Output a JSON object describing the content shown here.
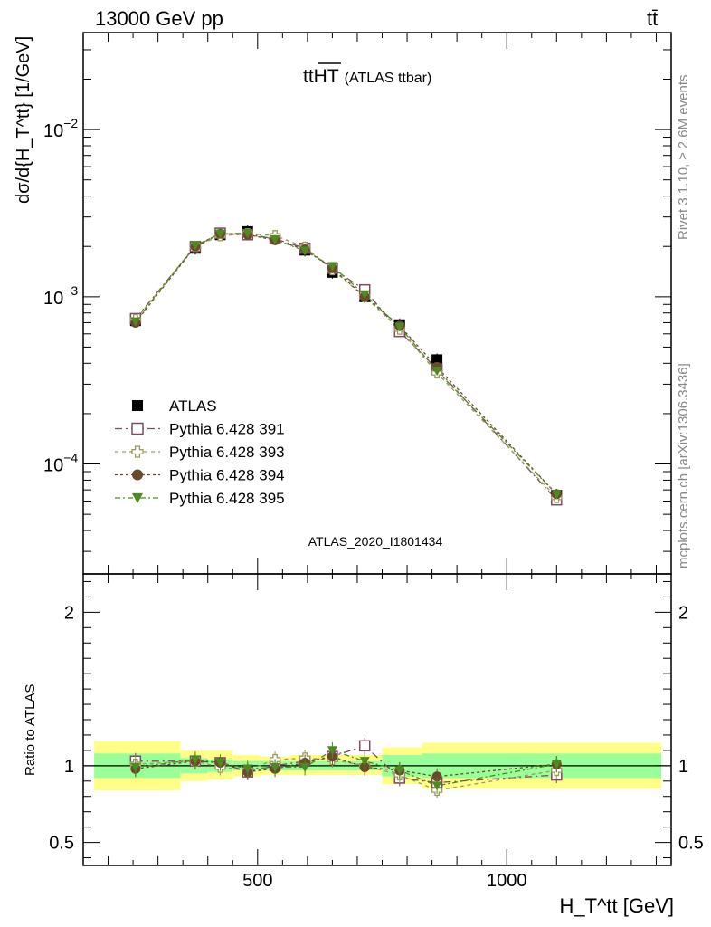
{
  "header": {
    "energy_label": "13000 GeV pp",
    "process_label": "tt̄"
  },
  "side_texts": {
    "rivet": "Rivet 3.1.10, ≥ 2.6M events",
    "mcplots": "mcplots.cern.ch [arXiv:1306.3436]"
  },
  "colors": {
    "atlas": "#000000",
    "py391": "#7b4a63",
    "py393": "#9a9a5a",
    "py394": "#6b4a2b",
    "py395": "#4e8a1f",
    "band_inner": "#99ff99",
    "band_outer": "#ffff88"
  },
  "chart_data": [
    {
      "type": "scatter",
      "panel": "main",
      "title_main": "tt",
      "title_over": "HT",
      "title_suffix": "(ATLAS ttbar)",
      "analysis_label": "ATLAS_2020_I1801434",
      "ylabel": "dσ/d{H_T^tt} [1/GeV]",
      "yscale": "log",
      "xlim": [
        150,
        1330
      ],
      "ylim": [
        2.2e-05,
        0.038
      ],
      "x_ticks": [
        500,
        1000
      ],
      "y_ticks": [
        {
          "value": 0.01,
          "base": "10",
          "exp": "−2"
        },
        {
          "value": 0.001,
          "base": "10",
          "exp": "−3"
        },
        {
          "value": 0.0001,
          "base": "10",
          "exp": "−4"
        }
      ],
      "legend_position": "lower-left",
      "x": [
        255,
        375,
        425,
        480,
        535,
        595,
        650,
        715,
        785,
        860,
        1100
      ],
      "series": [
        {
          "name": "ATLAS",
          "key": "atlas",
          "marker": "square-filled",
          "values": [
            0.00072,
            0.00195,
            0.00235,
            0.00245,
            0.00222,
            0.0019,
            0.0014,
            0.001,
            0.00068,
            0.00042,
            6.5e-05
          ]
        },
        {
          "name": "Pythia 6.428 391",
          "key": "py391",
          "marker": "square-open",
          "values": [
            0.00074,
            0.002,
            0.0024,
            0.00235,
            0.00222,
            0.00195,
            0.00148,
            0.0011,
            0.00062,
            0.00037,
            6.1e-05
          ]
        },
        {
          "name": "Pythia 6.428 393",
          "key": "py393",
          "marker": "cross-open",
          "values": [
            0.00073,
            0.002,
            0.00232,
            0.00238,
            0.00232,
            0.00198,
            0.00145,
            0.001,
            0.00064,
            0.00035,
            6.3e-05
          ]
        },
        {
          "name": "Pythia 6.428 394",
          "key": "py394",
          "marker": "circle-filled",
          "values": [
            0.0007,
            0.002,
            0.00238,
            0.00235,
            0.00218,
            0.00192,
            0.00148,
            0.001,
            0.00067,
            0.00038,
            6.6e-05
          ]
        },
        {
          "name": "Pythia 6.428 395",
          "key": "py395",
          "marker": "triangle-down-filled",
          "values": [
            0.00071,
            0.00203,
            0.00238,
            0.0024,
            0.0022,
            0.00188,
            0.00152,
            0.00103,
            0.00066,
            0.00036,
            6.6e-05
          ]
        }
      ]
    },
    {
      "type": "scatter",
      "panel": "ratio",
      "ylabel": "Ratio to ATLAS",
      "xlabel": "H_T^tt [GeV]",
      "xlim": [
        150,
        1330
      ],
      "ylim": [
        0.35,
        2.25
      ],
      "x_ticks": [
        500,
        1000
      ],
      "y_ticks": [
        0.5,
        1,
        2
      ],
      "x_tick_labels": [
        "500",
        "1000"
      ],
      "y_tick_labels": [
        "0.5",
        "1",
        "2"
      ],
      "bands": [
        {
          "x0": 172,
          "x1": 345,
          "inner": [
            0.92,
            1.08
          ],
          "outer": [
            0.84,
            1.16
          ]
        },
        {
          "x0": 345,
          "x1": 400,
          "inner": [
            0.95,
            1.05
          ],
          "outer": [
            0.9,
            1.1
          ]
        },
        {
          "x0": 400,
          "x1": 450,
          "inner": [
            0.96,
            1.04
          ],
          "outer": [
            0.91,
            1.1
          ]
        },
        {
          "x0": 450,
          "x1": 505,
          "inner": [
            0.97,
            1.03
          ],
          "outer": [
            0.93,
            1.07
          ]
        },
        {
          "x0": 505,
          "x1": 565,
          "inner": [
            0.97,
            1.03
          ],
          "outer": [
            0.94,
            1.06
          ]
        },
        {
          "x0": 565,
          "x1": 620,
          "inner": [
            0.97,
            1.03
          ],
          "outer": [
            0.94,
            1.07
          ]
        },
        {
          "x0": 620,
          "x1": 680,
          "inner": [
            0.97,
            1.03
          ],
          "outer": [
            0.94,
            1.07
          ]
        },
        {
          "x0": 680,
          "x1": 750,
          "inner": [
            0.97,
            1.03
          ],
          "outer": [
            0.94,
            1.07
          ]
        },
        {
          "x0": 750,
          "x1": 830,
          "inner": [
            0.93,
            1.07
          ],
          "outer": [
            0.88,
            1.12
          ]
        },
        {
          "x0": 830,
          "x1": 1310,
          "inner": [
            0.92,
            1.08
          ],
          "outer": [
            0.85,
            1.15
          ]
        }
      ],
      "x": [
        255,
        375,
        425,
        480,
        535,
        595,
        650,
        715,
        785,
        860,
        1100
      ],
      "series": [
        {
          "name": "Pythia 6.428 391",
          "key": "py391",
          "marker": "square-open",
          "values": [
            1.03,
            1.03,
            1.02,
            0.96,
            1.0,
            1.03,
            1.06,
            1.13,
            0.92,
            0.89,
            0.94
          ]
        },
        {
          "name": "Pythia 6.428 393",
          "key": "py393",
          "marker": "cross-open",
          "values": [
            1.01,
            1.03,
            0.99,
            0.97,
            1.04,
            1.05,
            1.04,
            1.0,
            0.94,
            0.84,
            0.97
          ]
        },
        {
          "name": "Pythia 6.428 394",
          "key": "py394",
          "marker": "circle-filled",
          "values": [
            0.98,
            1.03,
            1.02,
            0.96,
            0.98,
            1.02,
            1.06,
            0.99,
            0.97,
            0.93,
            1.01
          ]
        },
        {
          "name": "Pythia 6.428 395",
          "key": "py395",
          "marker": "triangle-down-filled",
          "values": [
            0.99,
            1.04,
            1.02,
            0.98,
            0.99,
            0.99,
            1.1,
            1.03,
            0.97,
            0.87,
            1.01
          ]
        }
      ]
    }
  ]
}
